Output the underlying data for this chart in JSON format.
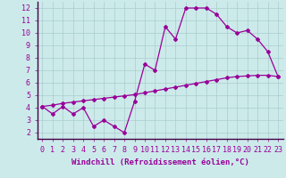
{
  "upper_x": [
    0,
    1,
    2,
    3,
    4,
    5,
    6,
    7,
    8,
    9,
    10,
    11,
    12,
    13,
    14,
    15,
    16,
    17,
    18,
    19,
    20,
    21,
    22,
    23
  ],
  "upper_y": [
    4.1,
    3.5,
    4.1,
    3.5,
    4.0,
    2.5,
    3.0,
    2.5,
    2.0,
    4.5,
    7.5,
    7.0,
    10.5,
    9.5,
    12.0,
    12.0,
    12.0,
    11.5,
    10.5,
    10.0,
    10.2,
    9.5,
    8.5,
    6.5
  ],
  "lower_x": [
    0,
    1,
    2,
    3,
    4,
    5,
    6,
    7,
    8,
    9,
    10,
    11,
    12,
    13,
    14,
    15,
    16,
    17,
    18,
    19,
    20,
    21,
    22,
    23
  ],
  "lower_y": [
    4.1,
    4.2,
    4.35,
    4.45,
    4.55,
    4.65,
    4.75,
    4.85,
    4.95,
    5.05,
    5.2,
    5.35,
    5.5,
    5.65,
    5.8,
    5.95,
    6.1,
    6.25,
    6.4,
    6.5,
    6.55,
    6.6,
    6.6,
    6.5
  ],
  "line_color": "#990099",
  "bg_color": "#cceaea",
  "grid_color": "#aacccc",
  "xlabel": "Windchill (Refroidissement éolien,°C)",
  "xlabel_fontsize": 6.5,
  "xlim": [
    -0.5,
    23.5
  ],
  "ylim": [
    1.5,
    12.5
  ],
  "xticks": [
    0,
    1,
    2,
    3,
    4,
    5,
    6,
    7,
    8,
    9,
    10,
    11,
    12,
    13,
    14,
    15,
    16,
    17,
    18,
    19,
    20,
    21,
    22,
    23
  ],
  "yticks": [
    2,
    3,
    4,
    5,
    6,
    7,
    8,
    9,
    10,
    11,
    12
  ],
  "tick_fontsize": 6.0,
  "marker": "D",
  "marker_size": 2.0,
  "line_width": 0.9
}
